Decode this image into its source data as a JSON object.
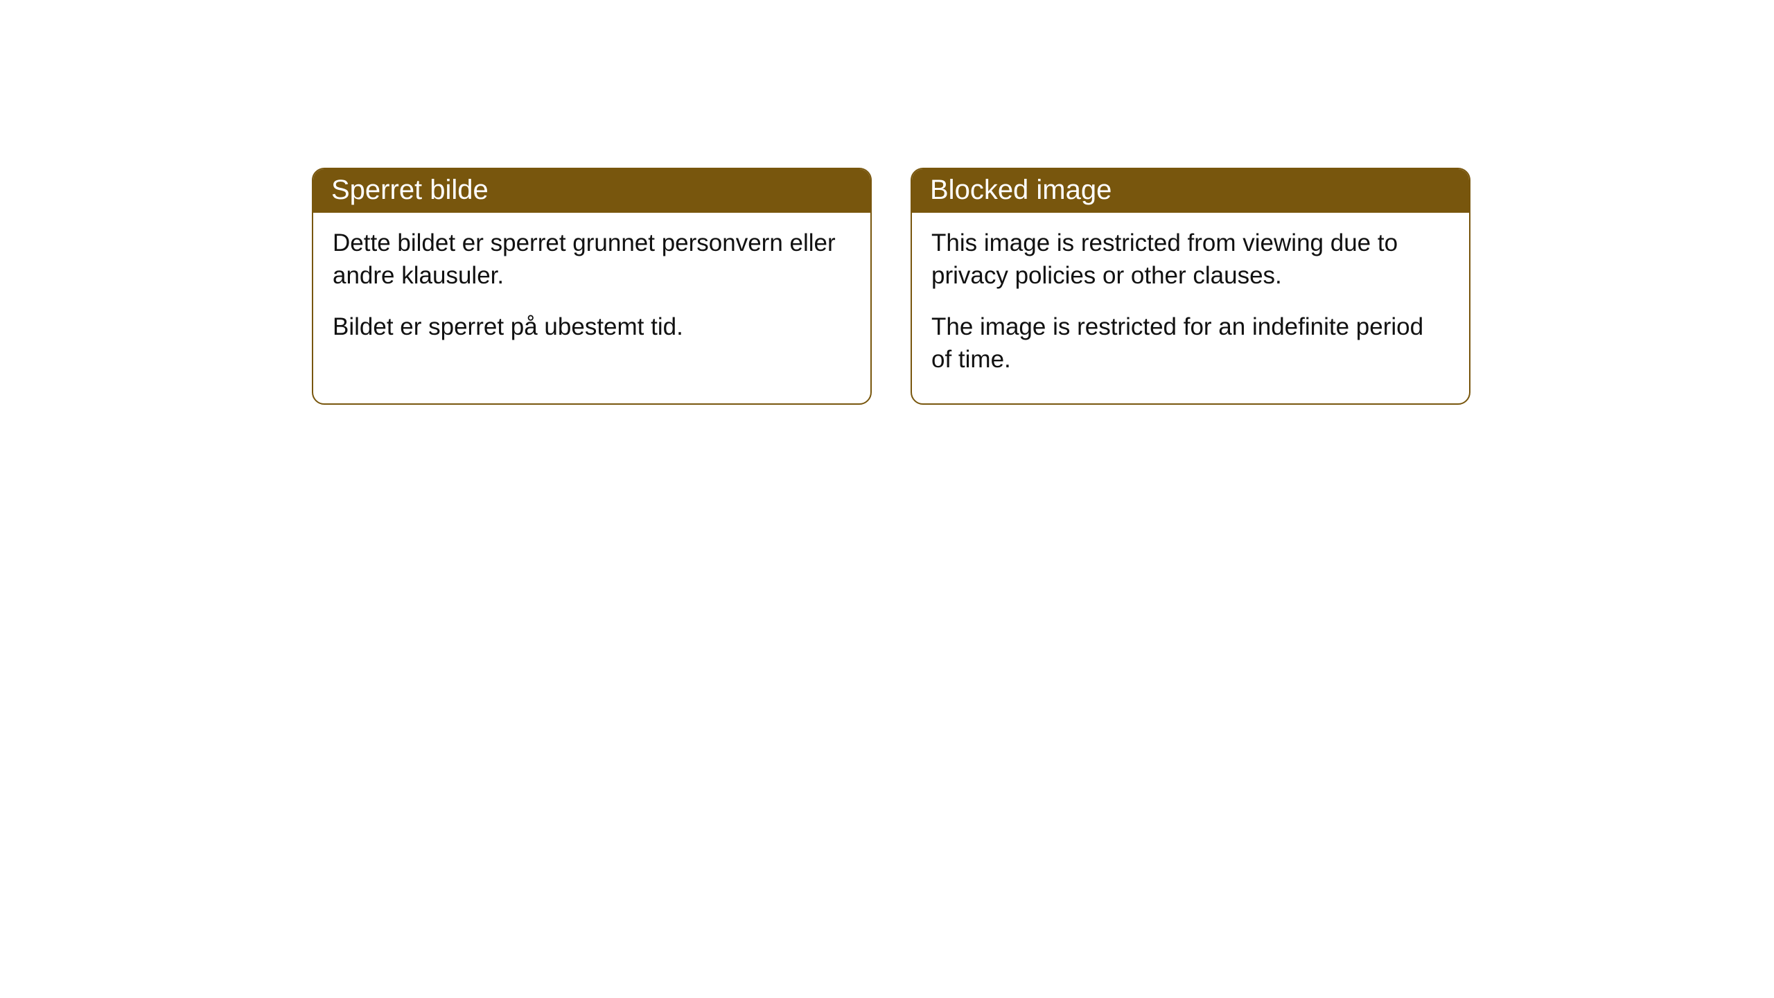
{
  "cards": [
    {
      "title": "Sperret bilde",
      "paragraph1": "Dette bildet er sperret grunnet personvern eller andre klausuler.",
      "paragraph2": "Bildet er sperret på ubestemt tid."
    },
    {
      "title": "Blocked image",
      "paragraph1": "This image is restricted from viewing due to privacy policies or other clauses.",
      "paragraph2": "The image is restricted for an indefinite period of time."
    }
  ],
  "styling": {
    "header_bg": "#78560d",
    "header_text_color": "#ffffff",
    "body_text_color": "#111111",
    "card_border_color": "#78560d",
    "card_bg": "#ffffff",
    "page_bg": "#ffffff",
    "border_radius": 18,
    "header_fontsize": 40,
    "body_fontsize": 35
  }
}
